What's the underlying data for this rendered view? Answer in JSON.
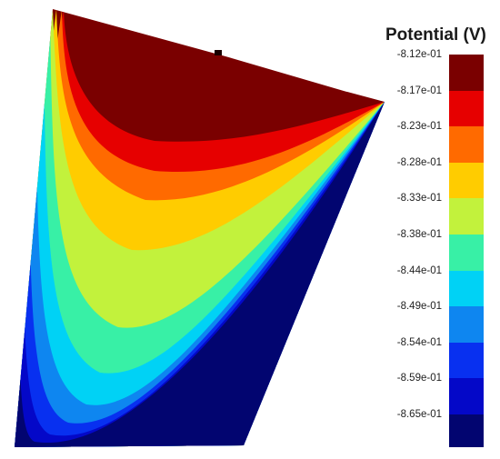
{
  "figure": {
    "legend_title": "Potential (V)",
    "legend_ticks": [
      "-8.12e-01",
      "-8.17e-01",
      "-8.23e-01",
      "-8.28e-01",
      "-8.33e-01",
      "-8.38e-01",
      "-8.44e-01",
      "-8.49e-01",
      "-8.54e-01",
      "-8.59e-01",
      "-8.65e-01"
    ],
    "legend_colors": [
      "#7a0000",
      "#e60000",
      "#ff6a00",
      "#ffcc00",
      "#c2f23c",
      "#38f0a6",
      "#00d2f5",
      "#0e86f0",
      "#0830f0",
      "#0408c8",
      "#020570"
    ],
    "band_colors_top_to_bottom": [
      "#7a0000",
      "#e60000",
      "#ff6a00",
      "#ffcc00",
      "#c2f23c",
      "#38f0a6",
      "#00d2f5",
      "#0e86f0",
      "#0830f0",
      "#0408c8",
      "#020570"
    ]
  }
}
